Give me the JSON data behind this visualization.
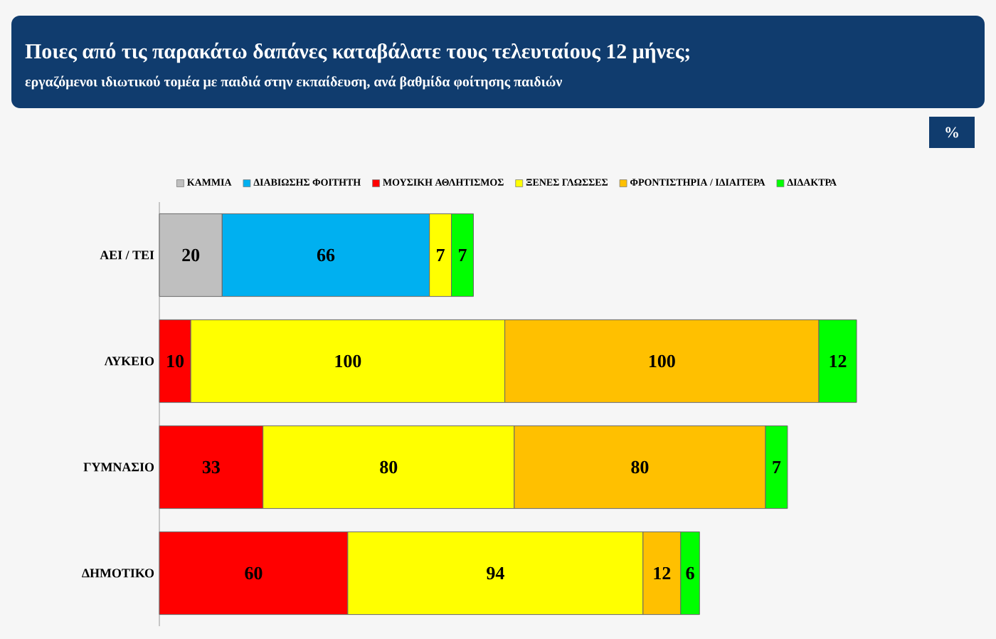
{
  "chart_data": {
    "type": "bar",
    "orientation": "horizontal",
    "stacked": true,
    "data_labels": true,
    "legend": "top",
    "tick_labels": "y",
    "title": "Ποιες από τις παρακάτω δαπάνες καταβάλατε τους τελευταίους 12 μήνες;",
    "subtitle": "εργαζόμενοι ιδιωτικού τομέα με παιδιά στην εκπαίδευση, ανά βαθμίδα φοίτησης παιδιών",
    "annotations": [
      "%"
    ],
    "categories": [
      "ΑΕΙ / ΤΕΙ",
      "ΛΥΚΕΙΟ",
      "ΓΥΜΝΑΣΙΟ",
      "ΔΗΜΟΤΙΚΟ"
    ],
    "series": [
      {
        "name": "ΚΑΜΜΙΑ",
        "color": "#bfbfbf",
        "values": [
          20,
          null,
          null,
          null
        ]
      },
      {
        "name": "ΔΙΑΒΙΩΣΗΣ ΦΟΙΤΗΤΗ",
        "color": "#00b0f0",
        "values": [
          66,
          null,
          null,
          null
        ]
      },
      {
        "name": "ΜΟΥΣΙΚΗ ΑΘΛΗΤΙΣΜΟΣ",
        "color": "#ff0000",
        "values": [
          null,
          10,
          33,
          60
        ]
      },
      {
        "name": "ΞΕΝΕΣ ΓΛΩΣΣΕΣ",
        "color": "#ffff00",
        "values": [
          7,
          100,
          80,
          94
        ]
      },
      {
        "name": "ΦΡΟΝΤΙΣΤΗΡΙΑ / ΙΔΙΑΙΤΕΡΑ",
        "color": "#ffc000",
        "values": [
          null,
          100,
          80,
          12
        ]
      },
      {
        "name": "ΔΙΔΑΚΤΡΑ",
        "color": "#00ff00",
        "values": [
          7,
          12,
          7,
          6
        ]
      }
    ]
  }
}
